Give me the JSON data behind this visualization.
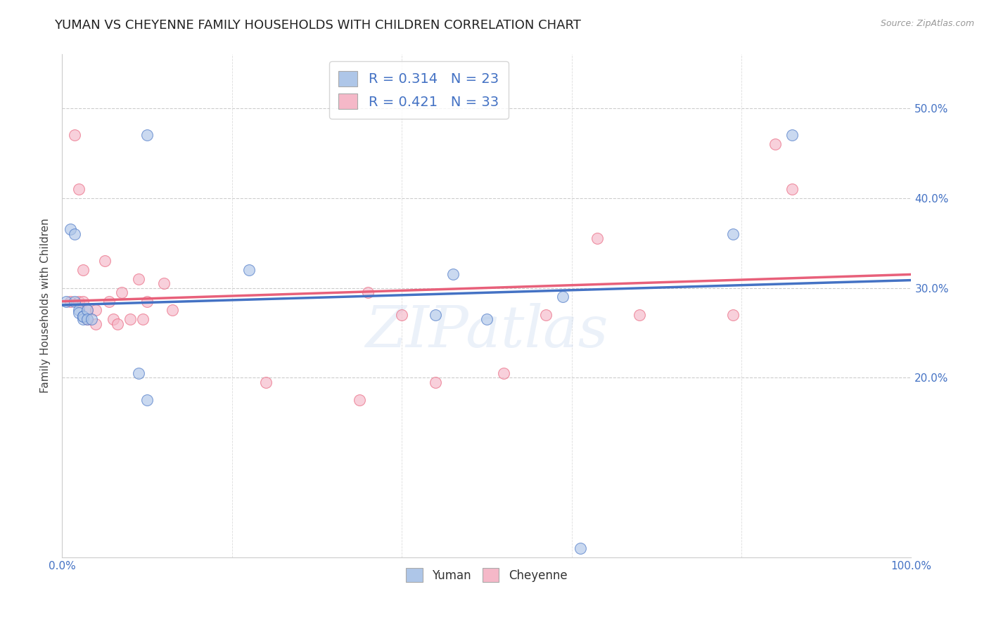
{
  "title": "YUMAN VS CHEYENNE FAMILY HOUSEHOLDS WITH CHILDREN CORRELATION CHART",
  "source": "Source: ZipAtlas.com",
  "ylabel": "Family Households with Children",
  "xlim": [
    0.0,
    1.0
  ],
  "ylim": [
    0.0,
    0.56
  ],
  "yuman_color": "#aec6e8",
  "cheyenne_color": "#f5b8c8",
  "yuman_line_color": "#4472c4",
  "cheyenne_line_color": "#e8607a",
  "R_yuman": 0.314,
  "N_yuman": 23,
  "R_cheyenne": 0.421,
  "N_cheyenne": 33,
  "watermark": "ZIPatlas",
  "background_color": "#ffffff",
  "yuman_x": [
    0.005,
    0.01,
    0.015,
    0.015,
    0.02,
    0.02,
    0.025,
    0.025,
    0.025,
    0.03,
    0.03,
    0.035,
    0.09,
    0.1,
    0.1,
    0.22,
    0.44,
    0.5,
    0.59,
    0.61,
    0.79,
    0.86,
    0.46
  ],
  "yuman_y": [
    0.285,
    0.365,
    0.36,
    0.285,
    0.275,
    0.272,
    0.268,
    0.265,
    0.268,
    0.275,
    0.265,
    0.265,
    0.205,
    0.47,
    0.175,
    0.32,
    0.27,
    0.265,
    0.29,
    0.01,
    0.36,
    0.47,
    0.315
  ],
  "cheyenne_x": [
    0.01,
    0.015,
    0.02,
    0.02,
    0.025,
    0.025,
    0.03,
    0.03,
    0.04,
    0.04,
    0.05,
    0.055,
    0.06,
    0.065,
    0.07,
    0.08,
    0.09,
    0.095,
    0.1,
    0.12,
    0.13,
    0.24,
    0.35,
    0.36,
    0.4,
    0.44,
    0.52,
    0.57,
    0.63,
    0.68,
    0.79,
    0.84,
    0.86
  ],
  "cheyenne_y": [
    0.285,
    0.47,
    0.41,
    0.285,
    0.32,
    0.285,
    0.265,
    0.275,
    0.275,
    0.26,
    0.33,
    0.285,
    0.265,
    0.26,
    0.295,
    0.265,
    0.31,
    0.265,
    0.285,
    0.305,
    0.275,
    0.195,
    0.175,
    0.295,
    0.27,
    0.195,
    0.205,
    0.27,
    0.355,
    0.27,
    0.27,
    0.46,
    0.41
  ],
  "marker_size": 130,
  "marker_alpha": 0.65,
  "title_fontsize": 13,
  "label_fontsize": 11,
  "tick_fontsize": 11,
  "legend_fontsize": 14
}
